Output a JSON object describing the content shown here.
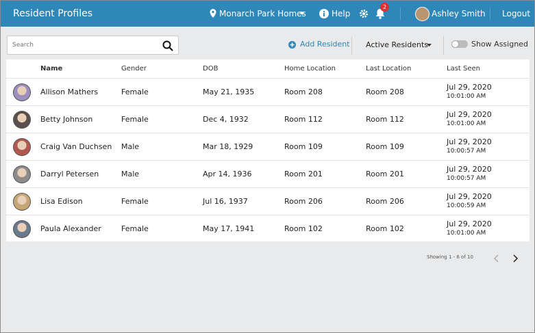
{
  "header": {
    "title": "Resident Profiles",
    "location": "Monarch Park Homes",
    "help": "Help",
    "notification_count": 2,
    "user": "Ashley Smith",
    "logout": "Logout"
  },
  "toolbar": {
    "search_placeholder": "Search",
    "add_button": "Add Resident",
    "filter": "Active Residents",
    "toggle": "Show Assigned"
  },
  "table": {
    "columns": [
      "Name",
      "Gender",
      "DOB",
      "Home Location",
      "Last Location",
      "Last Seen"
    ],
    "rows": [
      [
        "Allison Mathers",
        "Female",
        "May 21, 1935",
        "Room 208",
        "Room 208",
        "Jul 29, 2020",
        "10:01:00 AM"
      ],
      [
        "Betty Johnson",
        "Female",
        "Dec 4, 1932",
        "Room 112",
        "Room 112",
        "Jul 29, 2020",
        "10:01:00 AM"
      ],
      [
        "Craig Van Duchsen",
        "Male",
        "Mar 18, 1929",
        "Room 109",
        "Room 109",
        "Jul 29, 2020",
        "10:00:57 AM"
      ],
      [
        "Darryl Petersen",
        "Male",
        "Apr 14, 1936",
        "Room 201",
        "Room 201",
        "Jul 29, 2020",
        "10:00:57 AM"
      ],
      [
        "Lisa Edison",
        "Female",
        "Jul 16, 1937",
        "Room 206",
        "Room 206",
        "Jul 29, 2020",
        "10:00:59 AM"
      ],
      [
        "Paula Alexander",
        "Female",
        "May 17, 1941",
        "Room 102",
        "Room 102",
        "Jul 29, 2020",
        "10:01:00 AM"
      ]
    ]
  },
  "pagination": {
    "summary": "Showing 1 - 6 of 10"
  }
}
